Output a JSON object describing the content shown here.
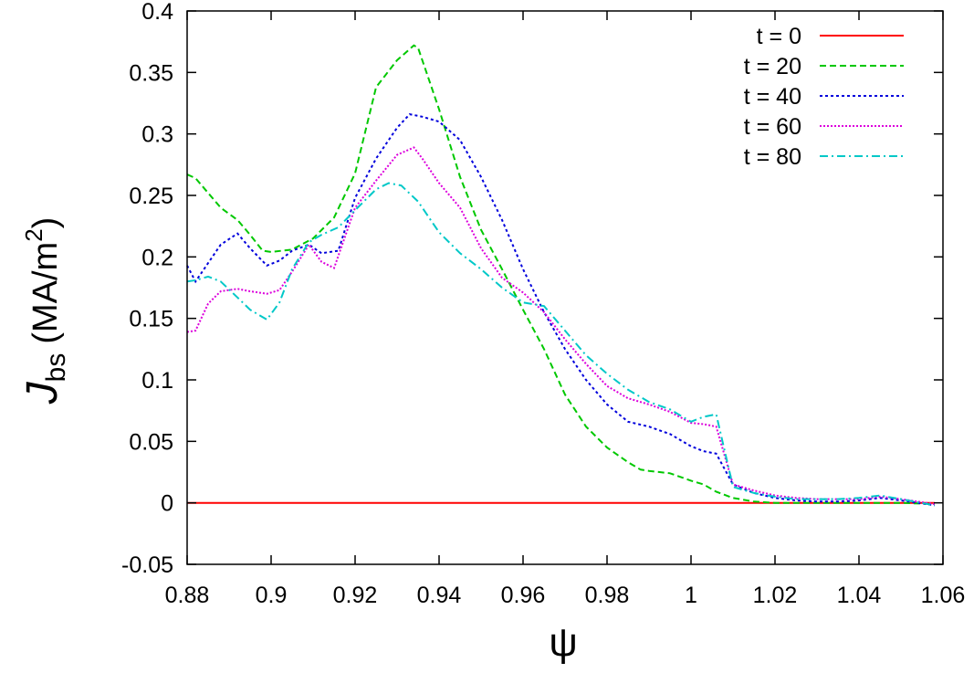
{
  "chart_data": {
    "type": "line",
    "xlabel": "ψ",
    "ylabel": {
      "main": "J",
      "subscript": "bs",
      "units_open": "(MA/m",
      "units_power": "2",
      "units_close": ")"
    },
    "xlim": [
      0.88,
      1.06
    ],
    "ylim": [
      -0.05,
      0.4
    ],
    "xticks": [
      0.88,
      0.9,
      0.92,
      0.94,
      0.96,
      0.98,
      1,
      1.02,
      1.04,
      1.06
    ],
    "xtick_labels": [
      "0.88",
      "0.9",
      "0.92",
      "0.94",
      "0.96",
      "0.98",
      "1",
      "1.02",
      "1.04",
      "1.06"
    ],
    "yticks": [
      -0.05,
      0,
      0.05,
      0.1,
      0.15,
      0.2,
      0.25,
      0.3,
      0.35,
      0.4
    ],
    "ytick_labels": [
      "-0.05",
      "0",
      "0.05",
      "0.1",
      "0.15",
      "0.2",
      "0.25",
      "0.3",
      "0.35",
      "0.4"
    ],
    "grid": false,
    "legend_position": "top-right",
    "series": [
      {
        "name": "t = 0",
        "color": "#ff0000",
        "dash": "solid",
        "x": [
          0.88,
          0.9,
          0.92,
          0.94,
          0.96,
          0.98,
          1.0,
          1.02,
          1.04,
          1.058
        ],
        "y": [
          0,
          0,
          0,
          0,
          0,
          0,
          0,
          0,
          0,
          0
        ]
      },
      {
        "name": "t = 20",
        "color": "#00c800",
        "dash": "dashed",
        "x": [
          0.88,
          0.882,
          0.885,
          0.888,
          0.892,
          0.895,
          0.898,
          0.9,
          0.905,
          0.91,
          0.915,
          0.92,
          0.925,
          0.93,
          0.934,
          0.935,
          0.94,
          0.945,
          0.95,
          0.955,
          0.96,
          0.965,
          0.97,
          0.975,
          0.98,
          0.985,
          0.988,
          0.99,
          0.995,
          1.0,
          1.003,
          1.006,
          1.01,
          1.015,
          1.02,
          1.03,
          1.04,
          1.05,
          1.058
        ],
        "y": [
          0.267,
          0.264,
          0.252,
          0.24,
          0.23,
          0.218,
          0.205,
          0.204,
          0.206,
          0.215,
          0.232,
          0.268,
          0.338,
          0.36,
          0.372,
          0.37,
          0.32,
          0.265,
          0.222,
          0.19,
          0.157,
          0.125,
          0.088,
          0.062,
          0.045,
          0.033,
          0.027,
          0.026,
          0.024,
          0.018,
          0.015,
          0.009,
          0.004,
          0.001,
          0.0,
          0.0,
          0.0,
          0.0,
          -0.001
        ]
      },
      {
        "name": "t = 40",
        "color": "#0000dc",
        "dash": "dotted",
        "x": [
          0.88,
          0.882,
          0.885,
          0.888,
          0.892,
          0.895,
          0.899,
          0.902,
          0.905,
          0.909,
          0.912,
          0.916,
          0.92,
          0.925,
          0.93,
          0.933,
          0.936,
          0.94,
          0.945,
          0.95,
          0.955,
          0.96,
          0.965,
          0.97,
          0.975,
          0.98,
          0.985,
          0.99,
          0.995,
          1.0,
          1.003,
          1.006,
          1.01,
          1.015,
          1.02,
          1.025,
          1.03,
          1.035,
          1.04,
          1.045,
          1.05,
          1.058
        ],
        "y": [
          0.193,
          0.18,
          0.195,
          0.21,
          0.219,
          0.207,
          0.193,
          0.197,
          0.205,
          0.21,
          0.203,
          0.205,
          0.248,
          0.28,
          0.305,
          0.316,
          0.314,
          0.31,
          0.295,
          0.265,
          0.23,
          0.19,
          0.155,
          0.125,
          0.1,
          0.08,
          0.066,
          0.062,
          0.056,
          0.046,
          0.042,
          0.04,
          0.015,
          0.008,
          0.004,
          0.002,
          0.001,
          0.001,
          0.002,
          0.004,
          0.002,
          -0.002
        ]
      },
      {
        "name": "t = 60",
        "color": "#dc00dc",
        "dash": "finedot",
        "x": [
          0.88,
          0.882,
          0.885,
          0.888,
          0.892,
          0.895,
          0.899,
          0.902,
          0.905,
          0.909,
          0.912,
          0.915,
          0.92,
          0.925,
          0.93,
          0.934,
          0.936,
          0.94,
          0.945,
          0.95,
          0.955,
          0.96,
          0.965,
          0.97,
          0.975,
          0.98,
          0.985,
          0.99,
          0.995,
          1.0,
          1.003,
          1.006,
          1.01,
          1.015,
          1.02,
          1.025,
          1.03,
          1.035,
          1.04,
          1.045,
          1.05,
          1.058
        ],
        "y": [
          0.139,
          0.14,
          0.162,
          0.172,
          0.174,
          0.172,
          0.17,
          0.173,
          0.188,
          0.21,
          0.196,
          0.191,
          0.24,
          0.262,
          0.283,
          0.289,
          0.28,
          0.26,
          0.24,
          0.207,
          0.183,
          0.171,
          0.155,
          0.133,
          0.113,
          0.095,
          0.085,
          0.08,
          0.074,
          0.065,
          0.064,
          0.062,
          0.015,
          0.01,
          0.006,
          0.004,
          0.003,
          0.003,
          0.003,
          0.005,
          0.003,
          -0.001
        ]
      },
      {
        "name": "t = 80",
        "color": "#00c8c8",
        "dash": "dashdot",
        "x": [
          0.88,
          0.882,
          0.885,
          0.888,
          0.892,
          0.895,
          0.899,
          0.902,
          0.905,
          0.909,
          0.912,
          0.916,
          0.92,
          0.925,
          0.928,
          0.931,
          0.935,
          0.94,
          0.945,
          0.95,
          0.955,
          0.96,
          0.965,
          0.97,
          0.975,
          0.98,
          0.985,
          0.99,
          0.995,
          1.0,
          1.003,
          1.006,
          1.01,
          1.015,
          1.02,
          1.025,
          1.03,
          1.035,
          1.04,
          1.045,
          1.05,
          1.058
        ],
        "y": [
          0.18,
          0.181,
          0.184,
          0.18,
          0.167,
          0.157,
          0.149,
          0.163,
          0.19,
          0.212,
          0.218,
          0.224,
          0.238,
          0.255,
          0.26,
          0.258,
          0.245,
          0.22,
          0.203,
          0.19,
          0.175,
          0.163,
          0.16,
          0.14,
          0.12,
          0.105,
          0.092,
          0.082,
          0.076,
          0.066,
          0.07,
          0.072,
          0.013,
          0.008,
          0.005,
          0.003,
          0.003,
          0.003,
          0.004,
          0.006,
          0.003,
          -0.002
        ]
      }
    ]
  }
}
